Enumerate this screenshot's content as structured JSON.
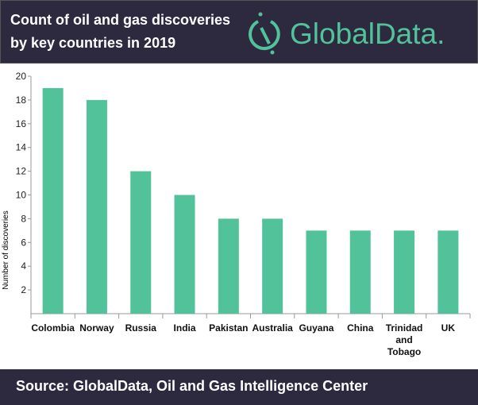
{
  "header": {
    "title_line1": "Count of oil and gas discoveries",
    "title_line2": "by key countries in 2019",
    "logo_text": "GlobalData."
  },
  "footer": {
    "source": "Source:  GlobalData, Oil and Gas Intelligence Center"
  },
  "colors": {
    "bar": "#52c29b",
    "background_dark": "#2d2a40"
  },
  "chart_data": {
    "type": "bar",
    "categories": [
      "Colombia",
      "Norway",
      "Russia",
      "India",
      "Pakistan",
      "Australia",
      "Guyana",
      "China",
      "Trinidad and Tobago",
      "UK"
    ],
    "values": [
      19,
      18,
      12,
      10,
      8,
      8,
      7,
      7,
      7,
      7
    ],
    "xlabel": "",
    "ylabel": "Number of discoveries",
    "ylim": [
      0,
      20
    ],
    "yticks": [
      2,
      4,
      6,
      8,
      10,
      12,
      14,
      16,
      18,
      20
    ],
    "grid": false
  }
}
